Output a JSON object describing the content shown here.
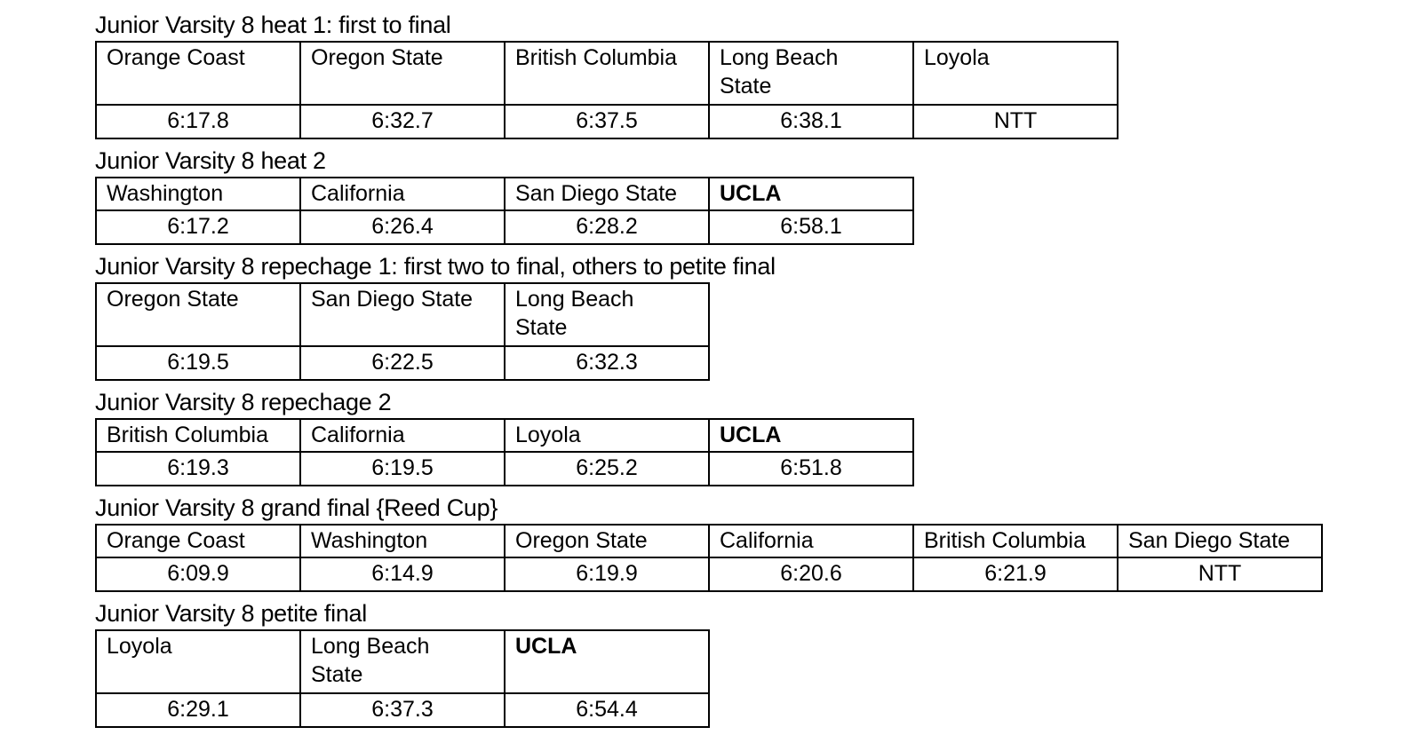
{
  "document": {
    "background_color": "#ffffff",
    "text_color": "#000000",
    "table_border_color": "#000000",
    "time_not_taken_label": "NTT"
  },
  "sections": [
    {
      "title": "Junior Varsity 8 heat 1: first to final",
      "entries": [
        {
          "team": "Orange Coast",
          "time": "6:17.8",
          "bold": false
        },
        {
          "team": "Oregon State",
          "time": "6:32.7",
          "bold": false
        },
        {
          "team": "British Columbia",
          "time": "6:37.5",
          "bold": false
        },
        {
          "team": "Long Beach\nState",
          "time": "6:38.1",
          "bold": false
        },
        {
          "team": "Loyola",
          "time": "NTT",
          "bold": false
        }
      ]
    },
    {
      "title": "Junior Varsity 8 heat 2",
      "entries": [
        {
          "team": "Washington",
          "time": "6:17.2",
          "bold": false
        },
        {
          "team": "California",
          "time": "6:26.4",
          "bold": false
        },
        {
          "team": "San Diego State",
          "time": "6:28.2",
          "bold": false
        },
        {
          "team": "UCLA",
          "time": "6:58.1",
          "bold": true
        }
      ]
    },
    {
      "title": "Junior Varsity 8 repechage 1: first two to final, others to petite final",
      "entries": [
        {
          "team": "Oregon State",
          "time": "6:19.5",
          "bold": false
        },
        {
          "team": "San Diego State",
          "time": "6:22.5",
          "bold": false
        },
        {
          "team": "Long Beach\nState",
          "time": "6:32.3",
          "bold": false
        }
      ]
    },
    {
      "title": "Junior Varsity 8 repechage 2",
      "entries": [
        {
          "team": "British Columbia",
          "time": "6:19.3",
          "bold": false
        },
        {
          "team": "California",
          "time": "6:19.5",
          "bold": false
        },
        {
          "team": "Loyola",
          "time": "6:25.2",
          "bold": false
        },
        {
          "team": "UCLA",
          "time": "6:51.8",
          "bold": true
        }
      ]
    },
    {
      "title": "Junior Varsity 8 grand final {Reed Cup}",
      "entries": [
        {
          "team": "Orange Coast",
          "time": "6:09.9",
          "bold": false
        },
        {
          "team": "Washington",
          "time": "6:14.9",
          "bold": false
        },
        {
          "team": "Oregon State",
          "time": "6:19.9",
          "bold": false
        },
        {
          "team": "California",
          "time": "6:20.6",
          "bold": false
        },
        {
          "team": "British Columbia",
          "time": "6:21.9",
          "bold": false
        },
        {
          "team": "San Diego State",
          "time": "NTT",
          "bold": false
        }
      ]
    },
    {
      "title": "Junior Varsity 8 petite final",
      "entries": [
        {
          "team": "Loyola",
          "time": "6:29.1",
          "bold": false
        },
        {
          "team": "Long Beach\nState",
          "time": "6:37.3",
          "bold": false
        },
        {
          "team": "UCLA",
          "time": "6:54.4",
          "bold": true
        }
      ]
    }
  ]
}
